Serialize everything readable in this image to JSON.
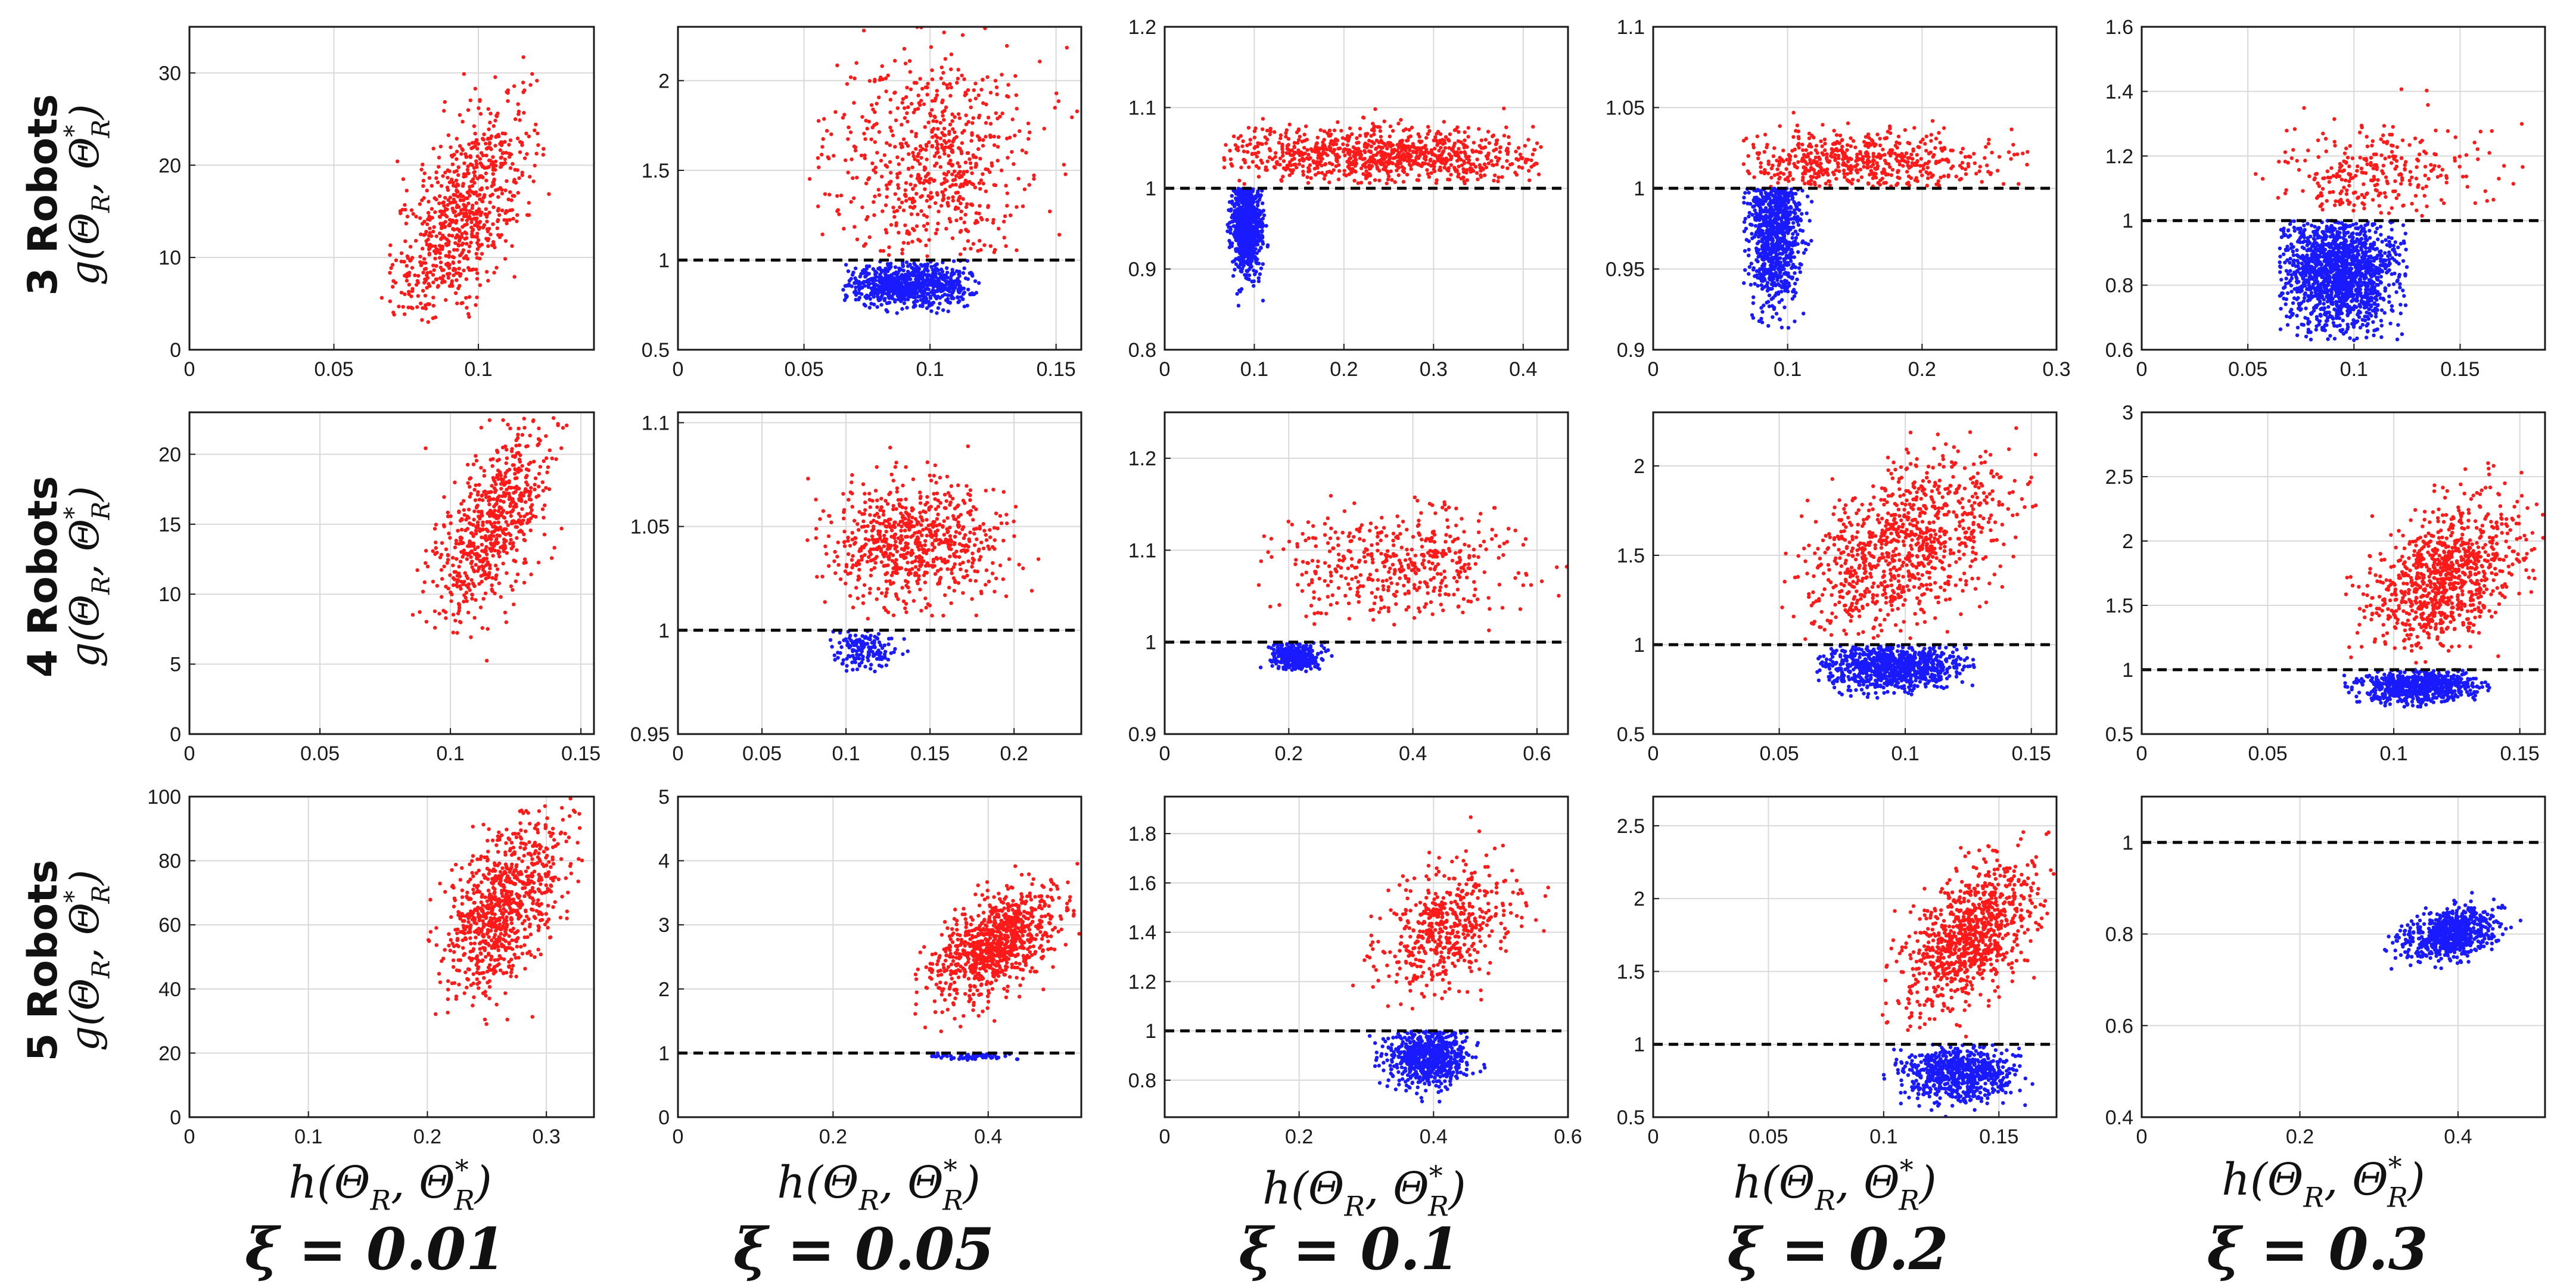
{
  "colors": {
    "above": "#ff1a1a",
    "below": "#1a1aff",
    "threshold": "#000000",
    "grid": "#d9d9d9"
  },
  "row_titles": [
    "3 Robots",
    "4 Robots",
    "5 Robots"
  ],
  "y_label": "g(Θ_R, Θ_R^*)",
  "x_label": "h(Θ_R, Θ_R^*)",
  "col_titles": [
    "ξ = 0.01",
    "ξ = 0.05",
    "ξ = 0.1",
    "ξ = 0.2",
    "ξ = 0.3"
  ],
  "chart_data": [
    {
      "type": "scatter",
      "row": 0,
      "col": 0,
      "xlim": [
        0,
        0.14
      ],
      "ylim": [
        0,
        35
      ],
      "xticks": [
        0,
        0.05,
        0.1
      ],
      "yticks": [
        0,
        10,
        20,
        30
      ],
      "threshold": null,
      "clusters": [
        {
          "color": "above",
          "n": 750,
          "x_range": [
            0.065,
            0.125
          ],
          "y_range": [
            3,
            35
          ],
          "x_center": 0.095,
          "y_center": 15,
          "x_spread": 0.012,
          "y_spread": 7,
          "tilt": 55
        }
      ]
    },
    {
      "type": "scatter",
      "row": 0,
      "col": 1,
      "xlim": [
        0,
        0.16
      ],
      "ylim": [
        0.5,
        2.3
      ],
      "xticks": [
        0,
        0.05,
        0.1,
        0.15
      ],
      "yticks": [
        0.5,
        1,
        1.5,
        2
      ],
      "threshold": 1,
      "clusters": [
        {
          "color": "above",
          "n": 650,
          "x_range": [
            0.05,
            0.16
          ],
          "y_range": [
            1.02,
            2.3
          ],
          "x_center": 0.1,
          "y_center": 1.55,
          "x_spread": 0.02,
          "y_spread": 0.3,
          "tilt": 0
        },
        {
          "color": "below",
          "n": 800,
          "x_range": [
            0.065,
            0.12
          ],
          "y_range": [
            0.7,
            1.0
          ],
          "x_center": 0.092,
          "y_center": 0.86,
          "x_spread": 0.013,
          "y_spread": 0.06,
          "tilt": 0
        }
      ]
    },
    {
      "type": "scatter",
      "row": 0,
      "col": 2,
      "xlim": [
        0,
        0.45
      ],
      "ylim": [
        0.8,
        1.2
      ],
      "xticks": [
        0,
        0.1,
        0.2,
        0.3,
        0.4
      ],
      "yticks": [
        0.8,
        0.9,
        1,
        1.1,
        1.2
      ],
      "threshold": 1,
      "clusters": [
        {
          "color": "above",
          "n": 900,
          "x_range": [
            0.065,
            0.42
          ],
          "y_range": [
            1.005,
            1.13
          ],
          "x_center": 0.24,
          "y_center": 1.04,
          "x_spread": 0.1,
          "y_spread": 0.018,
          "tilt": 0
        },
        {
          "color": "below",
          "n": 900,
          "x_range": [
            0.07,
            0.12
          ],
          "y_range": [
            0.85,
            1.0
          ],
          "x_center": 0.092,
          "y_center": 0.955,
          "x_spread": 0.008,
          "y_spread": 0.03,
          "tilt": 0
        }
      ]
    },
    {
      "type": "scatter",
      "row": 0,
      "col": 3,
      "xlim": [
        0,
        0.3
      ],
      "ylim": [
        0.9,
        1.1
      ],
      "xticks": [
        0,
        0.1,
        0.2,
        0.3
      ],
      "yticks": [
        0.9,
        0.95,
        1,
        1.05,
        1.1
      ],
      "threshold": 1,
      "clusters": [
        {
          "color": "above",
          "n": 550,
          "x_range": [
            0.065,
            0.28
          ],
          "y_range": [
            1.001,
            1.06
          ],
          "x_center": 0.15,
          "y_center": 1.015,
          "x_spread": 0.05,
          "y_spread": 0.01,
          "tilt": 0
        },
        {
          "color": "below",
          "n": 850,
          "x_range": [
            0.065,
            0.12
          ],
          "y_range": [
            0.91,
            1.0
          ],
          "x_center": 0.09,
          "y_center": 0.975,
          "x_spread": 0.01,
          "y_spread": 0.025,
          "tilt": 0
        }
      ]
    },
    {
      "type": "scatter",
      "row": 0,
      "col": 4,
      "xlim": [
        0,
        0.19
      ],
      "ylim": [
        0.6,
        1.6
      ],
      "xticks": [
        0,
        0.05,
        0.1,
        0.15
      ],
      "yticks": [
        0.6,
        0.8,
        1,
        1.2,
        1.4,
        1.6
      ],
      "threshold": 1,
      "clusters": [
        {
          "color": "above",
          "n": 280,
          "x_range": [
            0.05,
            0.18
          ],
          "y_range": [
            1.01,
            1.5
          ],
          "x_center": 0.11,
          "y_center": 1.15,
          "x_spread": 0.025,
          "y_spread": 0.08,
          "tilt": 0
        },
        {
          "color": "below",
          "n": 1500,
          "x_range": [
            0.065,
            0.125
          ],
          "y_range": [
            0.62,
            1.0
          ],
          "x_center": 0.093,
          "y_center": 0.84,
          "x_spread": 0.014,
          "y_spread": 0.09,
          "tilt": 0
        }
      ]
    },
    {
      "type": "scatter",
      "row": 1,
      "col": 0,
      "xlim": [
        0,
        0.155
      ],
      "ylim": [
        0,
        23
      ],
      "xticks": [
        0,
        0.05,
        0.1,
        0.15
      ],
      "yticks": [
        0,
        5,
        10,
        15,
        20
      ],
      "threshold": null,
      "clusters": [
        {
          "color": "above",
          "n": 650,
          "x_range": [
            0.085,
            0.145
          ],
          "y_range": [
            3.5,
            23
          ],
          "x_center": 0.115,
          "y_center": 15,
          "x_spread": 0.011,
          "y_spread": 3.8,
          "tilt": 50
        }
      ]
    },
    {
      "type": "scatter",
      "row": 1,
      "col": 1,
      "xlim": [
        0,
        0.24
      ],
      "ylim": [
        0.95,
        1.105
      ],
      "xticks": [
        0,
        0.05,
        0.1,
        0.15,
        0.2
      ],
      "yticks": [
        0.95,
        1,
        1.05,
        1.1
      ],
      "threshold": 1,
      "clusters": [
        {
          "color": "above",
          "n": 700,
          "x_range": [
            0.07,
            0.22
          ],
          "y_range": [
            1.005,
            1.1
          ],
          "x_center": 0.14,
          "y_center": 1.042,
          "x_spread": 0.025,
          "y_spread": 0.015,
          "tilt": 0
        },
        {
          "color": "below",
          "n": 150,
          "x_range": [
            0.09,
            0.14
          ],
          "y_range": [
            0.978,
            1.0
          ],
          "x_center": 0.112,
          "y_center": 0.992,
          "x_spread": 0.01,
          "y_spread": 0.005,
          "tilt": 0
        }
      ]
    },
    {
      "type": "scatter",
      "row": 1,
      "col": 2,
      "xlim": [
        0,
        0.65
      ],
      "ylim": [
        0.9,
        1.25
      ],
      "xticks": [
        0,
        0.2,
        0.4,
        0.6
      ],
      "yticks": [
        0.9,
        1,
        1.1,
        1.2
      ],
      "threshold": 1,
      "clusters": [
        {
          "color": "above",
          "n": 450,
          "x_range": [
            0.15,
            0.65
          ],
          "y_range": [
            1.01,
            1.2
          ],
          "x_center": 0.38,
          "y_center": 1.085,
          "x_spread": 0.1,
          "y_spread": 0.03,
          "tilt": 0
        },
        {
          "color": "below",
          "n": 350,
          "x_range": [
            0.15,
            0.27
          ],
          "y_range": [
            0.96,
            1.0
          ],
          "x_center": 0.21,
          "y_center": 0.985,
          "x_spread": 0.02,
          "y_spread": 0.008,
          "tilt": 0
        }
      ]
    },
    {
      "type": "scatter",
      "row": 1,
      "col": 3,
      "xlim": [
        0,
        0.16
      ],
      "ylim": [
        0.5,
        2.3
      ],
      "xticks": [
        0,
        0.05,
        0.1,
        0.15
      ],
      "yticks": [
        0.5,
        1,
        1.5,
        2
      ],
      "threshold": 1,
      "clusters": [
        {
          "color": "above",
          "n": 900,
          "x_range": [
            0.05,
            0.155
          ],
          "y_range": [
            1.03,
            2.3
          ],
          "x_center": 0.1,
          "y_center": 1.55,
          "x_spread": 0.02,
          "y_spread": 0.3,
          "tilt": 40
        },
        {
          "color": "below",
          "n": 900,
          "x_range": [
            0.065,
            0.13
          ],
          "y_range": [
            0.7,
            1.0
          ],
          "x_center": 0.095,
          "y_center": 0.88,
          "x_spread": 0.013,
          "y_spread": 0.07,
          "tilt": 0
        }
      ]
    },
    {
      "type": "scatter",
      "row": 1,
      "col": 4,
      "xlim": [
        0,
        0.16
      ],
      "ylim": [
        0.5,
        3
      ],
      "xticks": [
        0,
        0.05,
        0.1,
        0.15
      ],
      "yticks": [
        0.5,
        1,
        1.5,
        2,
        2.5,
        3
      ],
      "threshold": 1,
      "clusters": [
        {
          "color": "above",
          "n": 900,
          "x_range": [
            0.08,
            0.16
          ],
          "y_range": [
            1.05,
            2.8
          ],
          "x_center": 0.12,
          "y_center": 1.7,
          "x_spread": 0.015,
          "y_spread": 0.32,
          "tilt": 35
        },
        {
          "color": "below",
          "n": 700,
          "x_range": [
            0.08,
            0.14
          ],
          "y_range": [
            0.7,
            1.0
          ],
          "x_center": 0.11,
          "y_center": 0.87,
          "x_spread": 0.012,
          "y_spread": 0.06,
          "tilt": 0
        }
      ]
    },
    {
      "type": "scatter",
      "row": 2,
      "col": 0,
      "xlim": [
        0,
        0.34
      ],
      "ylim": [
        0,
        100
      ],
      "xticks": [
        0,
        0.1,
        0.2,
        0.3
      ],
      "yticks": [
        0,
        20,
        40,
        60,
        80,
        100
      ],
      "threshold": null,
      "clusters": [
        {
          "color": "above",
          "n": 850,
          "x_range": [
            0.2,
            0.33
          ],
          "y_range": [
            17,
            100
          ],
          "x_center": 0.265,
          "y_center": 66,
          "x_spread": 0.025,
          "y_spread": 16,
          "tilt": 45
        }
      ]
    },
    {
      "type": "scatter",
      "row": 2,
      "col": 1,
      "xlim": [
        0,
        0.52
      ],
      "ylim": [
        0,
        5
      ],
      "xticks": [
        0,
        0.2,
        0.4
      ],
      "yticks": [
        0,
        1,
        2,
        3,
        4,
        5
      ],
      "threshold": 1,
      "clusters": [
        {
          "color": "above",
          "n": 900,
          "x_range": [
            0.3,
            0.52
          ],
          "y_range": [
            1.3,
            4.3
          ],
          "x_center": 0.41,
          "y_center": 2.7,
          "x_spread": 0.04,
          "y_spread": 0.5,
          "tilt": 45
        },
        {
          "color": "below",
          "n": 60,
          "x_range": [
            0.32,
            0.44
          ],
          "y_range": [
            0.85,
            1.0
          ],
          "x_center": 0.38,
          "y_center": 0.95,
          "x_spread": 0.03,
          "y_spread": 0.03,
          "tilt": 0
        }
      ]
    },
    {
      "type": "scatter",
      "row": 2,
      "col": 2,
      "xlim": [
        0,
        0.6
      ],
      "ylim": [
        0.65,
        1.95
      ],
      "xticks": [
        0,
        0.2,
        0.4,
        0.6
      ],
      "yticks": [
        0.8,
        1,
        1.2,
        1.4,
        1.6,
        1.8
      ],
      "threshold": 1,
      "clusters": [
        {
          "color": "above",
          "n": 500,
          "x_range": [
            0.28,
            0.6
          ],
          "y_range": [
            1.05,
            1.9
          ],
          "x_center": 0.42,
          "y_center": 1.43,
          "x_spread": 0.05,
          "y_spread": 0.15,
          "tilt": 35
        },
        {
          "color": "below",
          "n": 700,
          "x_range": [
            0.3,
            0.48
          ],
          "y_range": [
            0.7,
            1.0
          ],
          "x_center": 0.39,
          "y_center": 0.9,
          "x_spread": 0.03,
          "y_spread": 0.06,
          "tilt": 0
        }
      ]
    },
    {
      "type": "scatter",
      "row": 2,
      "col": 3,
      "xlim": [
        0,
        0.175
      ],
      "ylim": [
        0.5,
        2.7
      ],
      "xticks": [
        0,
        0.05,
        0.1,
        0.15
      ],
      "yticks": [
        0.5,
        1,
        1.5,
        2,
        2.5
      ],
      "threshold": 1,
      "clusters": [
        {
          "color": "above",
          "n": 900,
          "x_range": [
            0.095,
            0.175
          ],
          "y_range": [
            1.05,
            2.5
          ],
          "x_center": 0.137,
          "y_center": 1.75,
          "x_spread": 0.014,
          "y_spread": 0.28,
          "tilt": 45
        },
        {
          "color": "below",
          "n": 700,
          "x_range": [
            0.1,
            0.165
          ],
          "y_range": [
            0.5,
            1.0
          ],
          "x_center": 0.133,
          "y_center": 0.8,
          "x_spread": 0.012,
          "y_spread": 0.1,
          "tilt": 0
        }
      ]
    },
    {
      "type": "scatter",
      "row": 2,
      "col": 4,
      "xlim": [
        0,
        0.51
      ],
      "ylim": [
        0.4,
        1.1
      ],
      "xticks": [
        0,
        0.2,
        0.4
      ],
      "yticks": [
        0.4,
        0.6,
        0.8,
        1
      ],
      "threshold": 1,
      "clusters": [
        {
          "color": "below",
          "n": 700,
          "x_range": [
            0.3,
            0.48
          ],
          "y_range": [
            0.72,
            0.92
          ],
          "x_center": 0.39,
          "y_center": 0.8,
          "x_spread": 0.03,
          "y_spread": 0.03,
          "tilt": 30
        }
      ]
    }
  ]
}
